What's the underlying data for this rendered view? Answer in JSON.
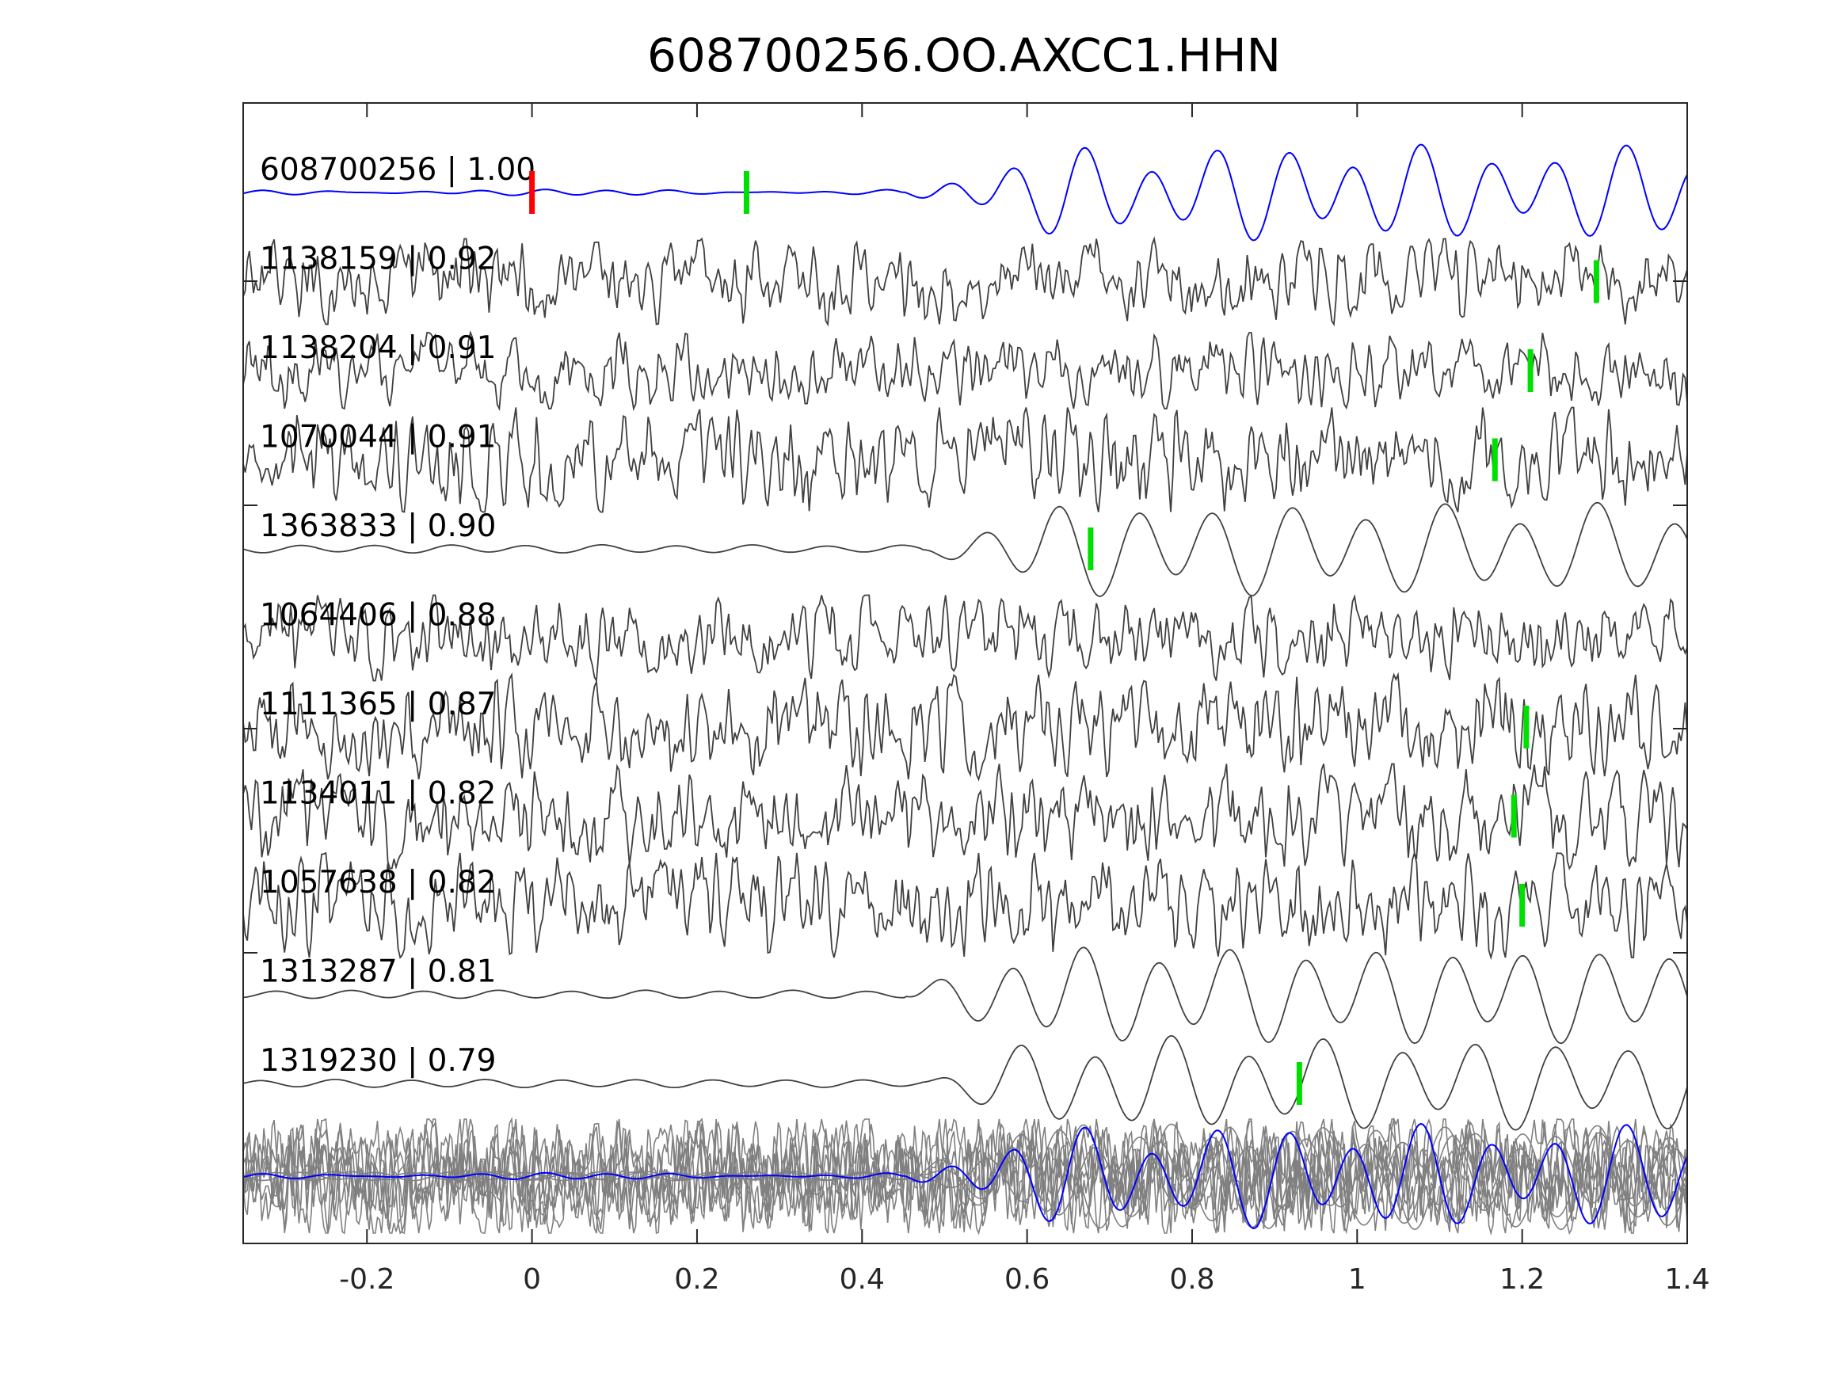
{
  "chart_data": {
    "type": "line",
    "title": "608700256.OO.AXCC1.HHN",
    "xlabel": "",
    "ylabel": "",
    "xlim": [
      -0.35,
      1.4
    ],
    "xticks": [
      -0.2,
      0,
      0.2,
      0.4,
      0.6,
      0.8,
      1,
      1.2,
      1.4
    ],
    "xtick_labels": [
      "-0.2",
      "0",
      "0.2",
      "0.4",
      "0.6",
      "0.8",
      "1",
      "1.2",
      "1.4"
    ],
    "grid": false,
    "colors": {
      "reference": "#0000ff",
      "trace": "#404040",
      "stack": "#808080",
      "red_marker": "#ff0000",
      "green_marker": "#00e000"
    },
    "traces": [
      {
        "label": "608700256 | 1.00",
        "id": "608700256",
        "cc": 1.0,
        "style": "reference",
        "red_pick": 0,
        "green_pick": 0.26
      },
      {
        "label": "1138159 | 0.92",
        "id": "1138159",
        "cc": 0.92,
        "style": "noisy",
        "green_pick": 1.29
      },
      {
        "label": "1138204 | 0.91",
        "id": "1138204",
        "cc": 0.91,
        "style": "noisy",
        "green_pick": 1.21
      },
      {
        "label": "1070044 | 0.91",
        "id": "1070044",
        "cc": 0.91,
        "style": "noisy",
        "green_pick": 1.167
      },
      {
        "label": "1363833 | 0.90",
        "id": "1363833",
        "cc": 0.9,
        "style": "smooth",
        "green_pick": 0.677
      },
      {
        "label": "1064406 | 0.88",
        "id": "1064406",
        "cc": 0.88,
        "style": "noisy",
        "green_pick": null
      },
      {
        "label": "1111365 | 0.87",
        "id": "1111365",
        "cc": 0.87,
        "style": "noisy",
        "green_pick": 1.205
      },
      {
        "label": "1134011 | 0.82",
        "id": "1134011",
        "cc": 0.82,
        "style": "noisy",
        "green_pick": 1.19
      },
      {
        "label": "1057638 | 0.82",
        "id": "1057638",
        "cc": 0.82,
        "style": "noisy",
        "green_pick": 1.2
      },
      {
        "label": "1313287 | 0.81",
        "id": "1313287",
        "cc": 0.81,
        "style": "smooth",
        "green_pick": null
      },
      {
        "label": "1319230 | 0.79",
        "id": "1319230",
        "cc": 0.79,
        "style": "smooth",
        "green_pick": 0.93
      }
    ]
  }
}
